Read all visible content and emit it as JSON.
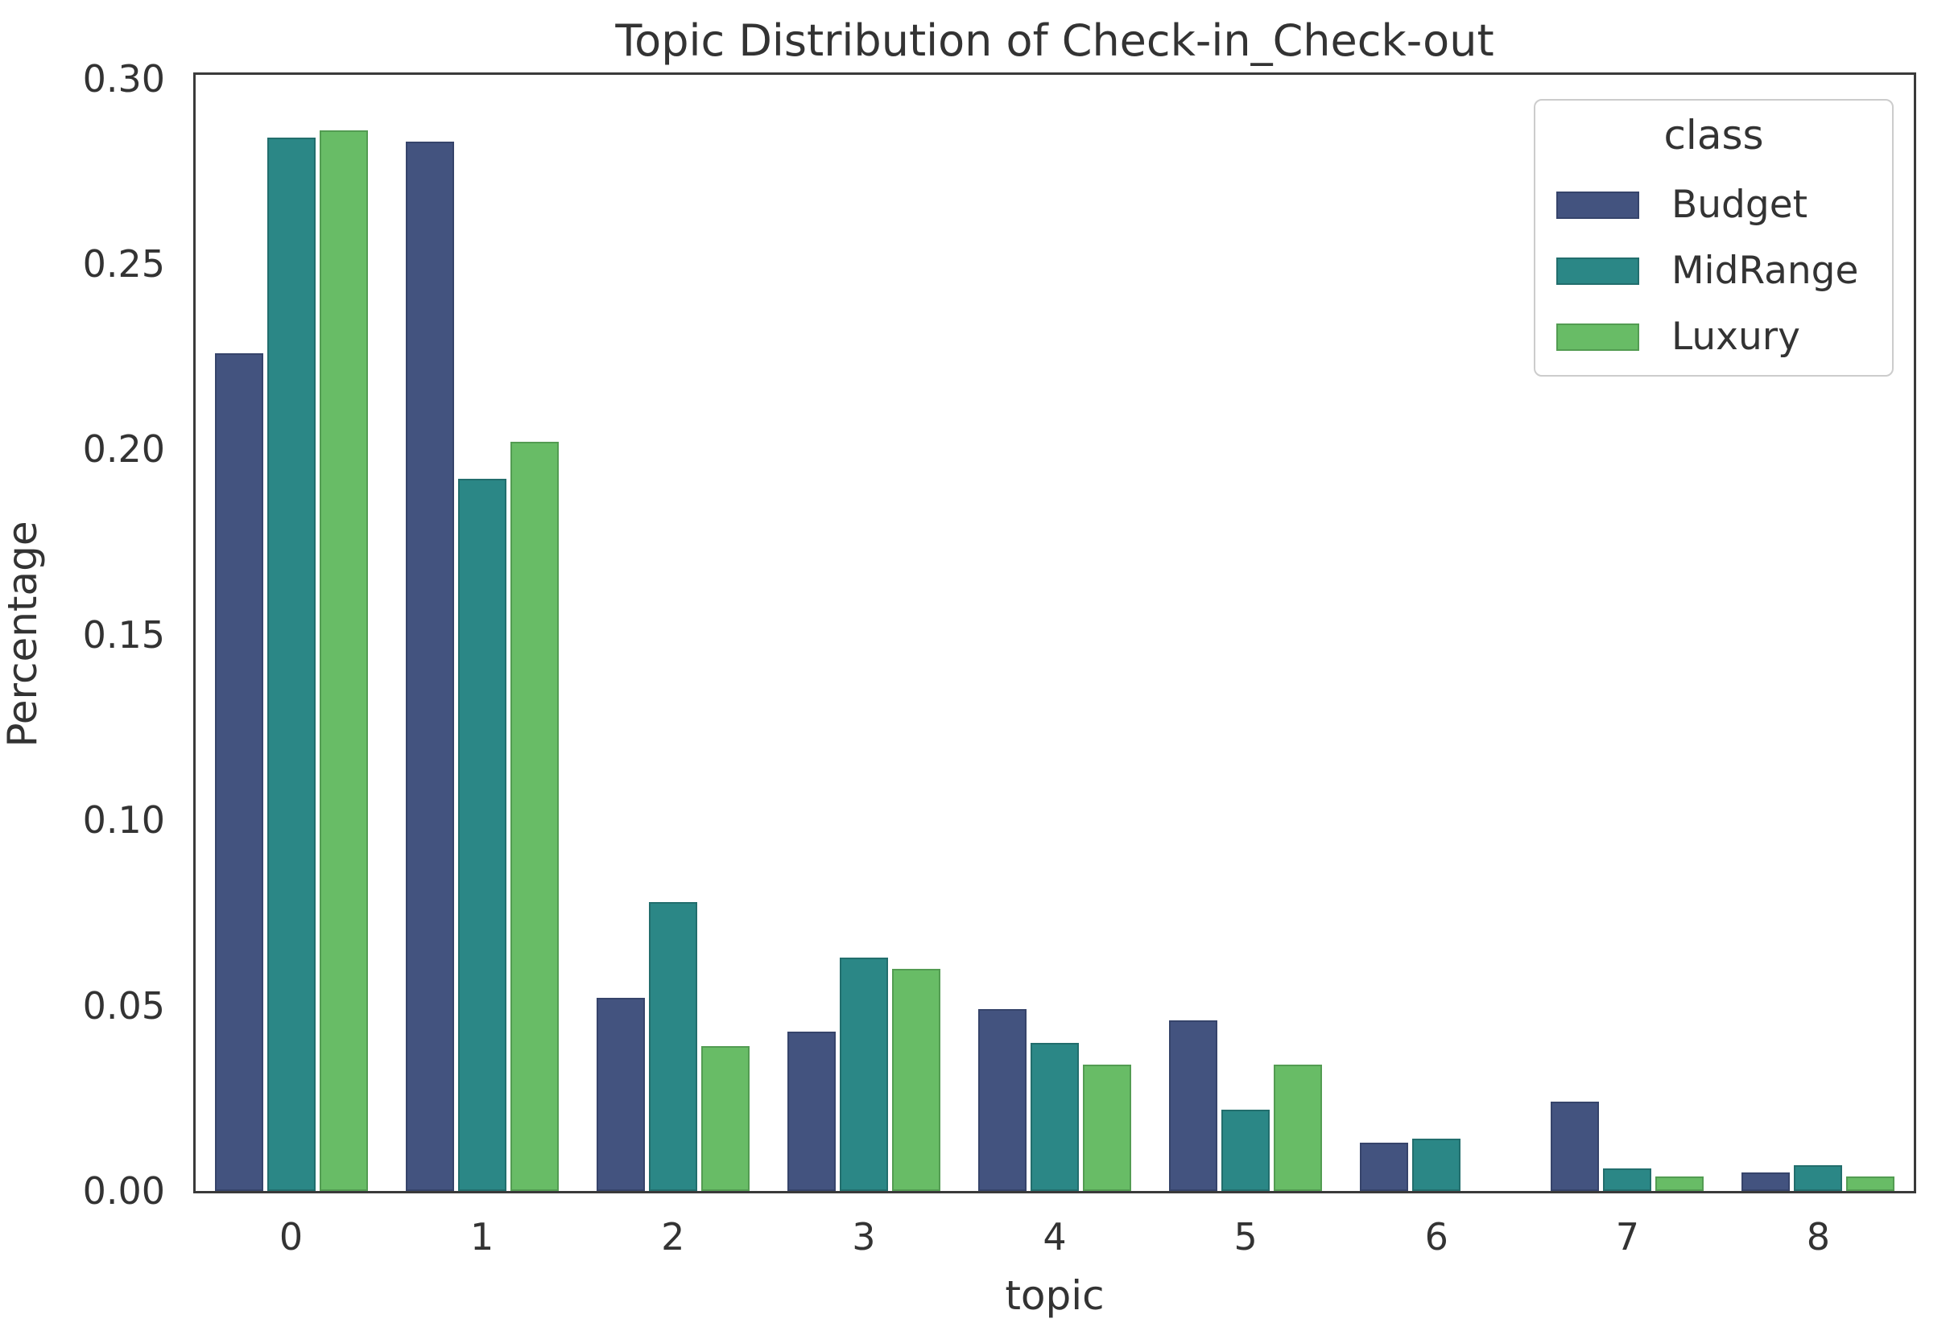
{
  "figure": {
    "background": "#ffffff",
    "spine_color": "#3a3a3a",
    "text_color": "#333333"
  },
  "chart_data": {
    "type": "bar",
    "title": "Topic Distribution of Check-in_Check-out",
    "xlabel": "topic",
    "ylabel": "Percentage",
    "categories": [
      "0",
      "1",
      "2",
      "3",
      "4",
      "5",
      "6",
      "7",
      "8"
    ],
    "series": [
      {
        "name": "Budget",
        "color": "#43537f",
        "edge_color": "#36446b",
        "values": [
          0.226,
          0.283,
          0.052,
          0.043,
          0.049,
          0.046,
          0.013,
          0.024,
          0.005
        ]
      },
      {
        "name": "MidRange",
        "color": "#2b8786",
        "edge_color": "#226e6d",
        "values": [
          0.284,
          0.192,
          0.078,
          0.063,
          0.04,
          0.022,
          0.014,
          0.006,
          0.007
        ]
      },
      {
        "name": "Luxury",
        "color": "#68bc66",
        "edge_color": "#539c52",
        "values": [
          0.286,
          0.202,
          0.039,
          0.06,
          0.034,
          0.034,
          0.0,
          0.004,
          0.004
        ]
      }
    ],
    "ylim": [
      0,
      0.301
    ],
    "yticks": [
      "0.00",
      "0.05",
      "0.10",
      "0.15",
      "0.20",
      "0.25",
      "0.30"
    ],
    "grid": false,
    "legend": {
      "title": "class",
      "position": "upper right"
    }
  }
}
